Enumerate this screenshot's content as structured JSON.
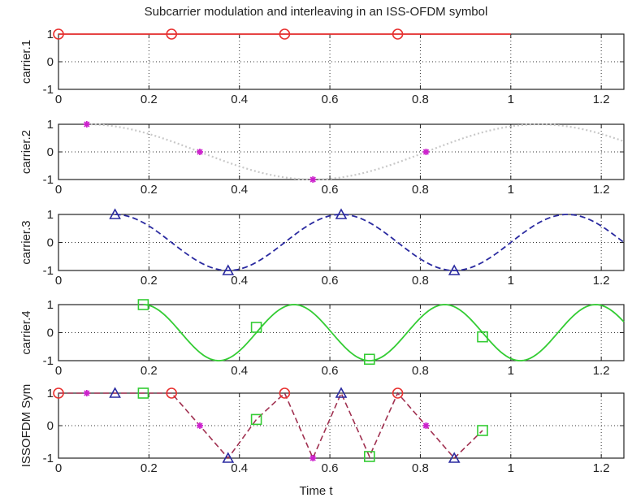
{
  "chart_data": {
    "type": "line",
    "title": "Subcarrier modulation and interleaving in  an ISS-OFDM symbol",
    "xlabel": "Time t",
    "xlim": [
      0,
      1.25
    ],
    "xticks": [
      "0",
      "0.2",
      "0.4",
      "0.6",
      "0.8",
      "1",
      "1.2"
    ],
    "ylim": [
      -1,
      1
    ],
    "yticks": [
      "-1",
      "0",
      "1"
    ],
    "grid": true,
    "colors": {
      "carrier1": "#e8302f",
      "carrier2": "#cc22cc",
      "carrier2_line": "#c8c8c8",
      "carrier3": "#2a2aa0",
      "carrier4": "#33cc33",
      "combined_line": "#a03050"
    },
    "subplots": [
      {
        "ylabel": "carrier.1",
        "curve": {
          "frequency": 0,
          "phase": 0,
          "amplitude": 1,
          "x_range": [
            0,
            1
          ],
          "style": "solid"
        },
        "marker": "circle",
        "points": [
          {
            "x": 0.0,
            "y": 1
          },
          {
            "x": 0.25,
            "y": 1
          },
          {
            "x": 0.5,
            "y": 1
          },
          {
            "x": 0.75,
            "y": 1
          }
        ]
      },
      {
        "ylabel": "carrier.2",
        "curve": {
          "frequency": 1,
          "phase": 0.0625,
          "amplitude": 1,
          "x_range": [
            0.0625,
            1.25
          ],
          "style": "dotted"
        },
        "marker": "asterisk",
        "points": [
          {
            "x": 0.0625,
            "y": 1
          },
          {
            "x": 0.3125,
            "y": 0
          },
          {
            "x": 0.5625,
            "y": -1
          },
          {
            "x": 0.8125,
            "y": 0
          }
        ]
      },
      {
        "ylabel": "carrier.3",
        "curve": {
          "frequency": 2,
          "phase": 0.125,
          "amplitude": 1,
          "x_range": [
            0.125,
            1.25
          ],
          "style": "dashed"
        },
        "marker": "triangle",
        "points": [
          {
            "x": 0.125,
            "y": 1
          },
          {
            "x": 0.375,
            "y": -1
          },
          {
            "x": 0.625,
            "y": 1
          },
          {
            "x": 0.875,
            "y": -1
          }
        ]
      },
      {
        "ylabel": "carrier.4",
        "curve": {
          "frequency": 3,
          "phase": 0.1875,
          "amplitude": 1,
          "x_range": [
            0.1875,
            1.25
          ],
          "style": "solid"
        },
        "marker": "square",
        "points": [
          {
            "x": 0.1875,
            "y": 1
          },
          {
            "x": 0.4375,
            "y": 0.19
          },
          {
            "x": 0.6875,
            "y": -0.95
          },
          {
            "x": 0.9375,
            "y": -0.15
          }
        ]
      },
      {
        "ylabel": "ISSOFDM Sym",
        "combined": [
          {
            "x": 0.0,
            "y": 1,
            "carrier": 1
          },
          {
            "x": 0.0625,
            "y": 1,
            "carrier": 2
          },
          {
            "x": 0.125,
            "y": 1,
            "carrier": 3
          },
          {
            "x": 0.1875,
            "y": 1,
            "carrier": 4
          },
          {
            "x": 0.25,
            "y": 1,
            "carrier": 1
          },
          {
            "x": 0.3125,
            "y": 0,
            "carrier": 2
          },
          {
            "x": 0.375,
            "y": -1,
            "carrier": 3
          },
          {
            "x": 0.4375,
            "y": 0.19,
            "carrier": 4
          },
          {
            "x": 0.5,
            "y": 1,
            "carrier": 1
          },
          {
            "x": 0.5625,
            "y": -1,
            "carrier": 2
          },
          {
            "x": 0.625,
            "y": 1,
            "carrier": 3
          },
          {
            "x": 0.6875,
            "y": -0.95,
            "carrier": 4
          },
          {
            "x": 0.75,
            "y": 1,
            "carrier": 1
          },
          {
            "x": 0.8125,
            "y": 0,
            "carrier": 2
          },
          {
            "x": 0.875,
            "y": -1,
            "carrier": 3
          },
          {
            "x": 0.9375,
            "y": -0.15,
            "carrier": 4
          }
        ]
      }
    ]
  }
}
